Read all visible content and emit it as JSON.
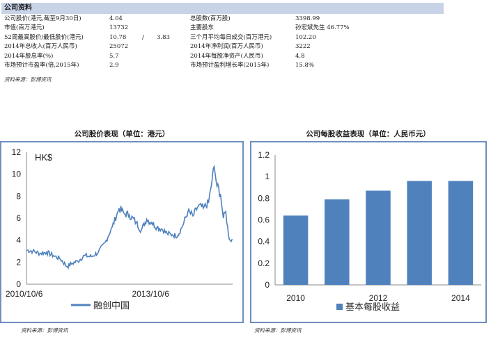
{
  "info": {
    "header": "公司资料",
    "rows": [
      {
        "l1": "公司股价(港元,截至9月30日)",
        "v1": "4.04",
        "sep": "",
        "v1b": "",
        "l2": "总股数(百万股)",
        "v2": "3398.99"
      },
      {
        "l1": "市值(百万港元)",
        "v1": "13732",
        "sep": "",
        "v1b": "",
        "l2": "主要股东",
        "v2": "孙宏斌先生 46.77%"
      },
      {
        "l1": "52周最高股价/最低股价(港元)",
        "v1": "10.78",
        "sep": "/",
        "v1b": "3.83",
        "l2": "三个月平均每日成交(百万港元)",
        "v2": "102.20"
      },
      {
        "l1": "2014年总收入(百万人民币)",
        "v1": "25072",
        "sep": "",
        "v1b": "",
        "l2": "2014年净利润(百万人民币)",
        "v2": "3222"
      },
      {
        "l1": "2014年股息率(%)",
        "v1": "5.7",
        "sep": "",
        "v1b": "",
        "l2": "2014年每股净资产(人民币)",
        "v2": "4.8"
      },
      {
        "l1": "市场预计市盈率(倍,2015年)",
        "v1": "2.9",
        "sep": "",
        "v1b": "",
        "l2": "市场预计盈利增长率(2015年)",
        "v2": "15.8%"
      }
    ],
    "source": "资料来源：彭博资讯"
  },
  "chart_data": [
    {
      "type": "line",
      "title": "公司股价表现（单位：港元）",
      "unit_label": "HK$",
      "y_ticks": [
        "0",
        "2",
        "4",
        "6",
        "8",
        "10",
        "12"
      ],
      "ylim": [
        0,
        12
      ],
      "x_tick_labels": [
        "2010/10/6",
        "2013/10/6"
      ],
      "xlim": [
        "2010-10-06",
        "2015-09-30"
      ],
      "series": [
        {
          "name": "融创中国",
          "color": "#4f81bd",
          "points": [
            [
              "2010-10-06",
              3.1
            ],
            [
              "2010-12-01",
              3.0
            ],
            [
              "2011-02-01",
              2.8
            ],
            [
              "2011-04-01",
              2.9
            ],
            [
              "2011-06-01",
              2.6
            ],
            [
              "2011-08-01",
              2.3
            ],
            [
              "2011-10-01",
              1.6
            ],
            [
              "2011-11-15",
              1.9
            ],
            [
              "2012-01-01",
              2.1
            ],
            [
              "2012-03-01",
              2.6
            ],
            [
              "2012-05-01",
              2.5
            ],
            [
              "2012-07-01",
              2.9
            ],
            [
              "2012-09-01",
              3.8
            ],
            [
              "2012-11-01",
              5.2
            ],
            [
              "2013-01-01",
              6.9
            ],
            [
              "2013-02-15",
              6.4
            ],
            [
              "2013-04-01",
              6.3
            ],
            [
              "2013-06-01",
              5.6
            ],
            [
              "2013-07-15",
              4.9
            ],
            [
              "2013-09-01",
              5.9
            ],
            [
              "2013-10-15",
              5.6
            ],
            [
              "2013-12-01",
              5.2
            ],
            [
              "2014-01-15",
              5.0
            ],
            [
              "2014-03-01",
              4.6
            ],
            [
              "2014-04-15",
              4.5
            ],
            [
              "2014-06-01",
              4.4
            ],
            [
              "2014-07-15",
              5.3
            ],
            [
              "2014-09-01",
              6.6
            ],
            [
              "2014-10-15",
              6.2
            ],
            [
              "2014-12-01",
              7.1
            ],
            [
              "2015-01-15",
              6.9
            ],
            [
              "2015-03-01",
              7.4
            ],
            [
              "2015-04-01",
              9.4
            ],
            [
              "2015-04-20",
              10.7
            ],
            [
              "2015-05-15",
              8.9
            ],
            [
              "2015-06-15",
              8.2
            ],
            [
              "2015-07-10",
              6.0
            ],
            [
              "2015-08-01",
              6.6
            ],
            [
              "2015-08-25",
              4.4
            ],
            [
              "2015-09-10",
              4.0
            ],
            [
              "2015-09-30",
              4.04
            ]
          ]
        }
      ]
    },
    {
      "type": "bar",
      "title": "公司每股收益表现（单位：人民币元）",
      "categories": [
        "2010",
        "2011",
        "2012",
        "2013",
        "2014"
      ],
      "x_tick_labels": [
        "2010",
        "2012",
        "2014"
      ],
      "y_ticks": [
        "0",
        "0.2",
        "0.4",
        "0.6",
        "0.8",
        "1",
        "1.2"
      ],
      "ylim": [
        0,
        1.2
      ],
      "series": [
        {
          "name": "基本每股收益",
          "color": "#4f81bd",
          "values": [
            0.64,
            0.79,
            0.87,
            0.96,
            0.96
          ]
        }
      ]
    }
  ],
  "bottom_sources": {
    "left": "资料来源：彭博资讯",
    "right": "资料来源：彭博资讯"
  }
}
